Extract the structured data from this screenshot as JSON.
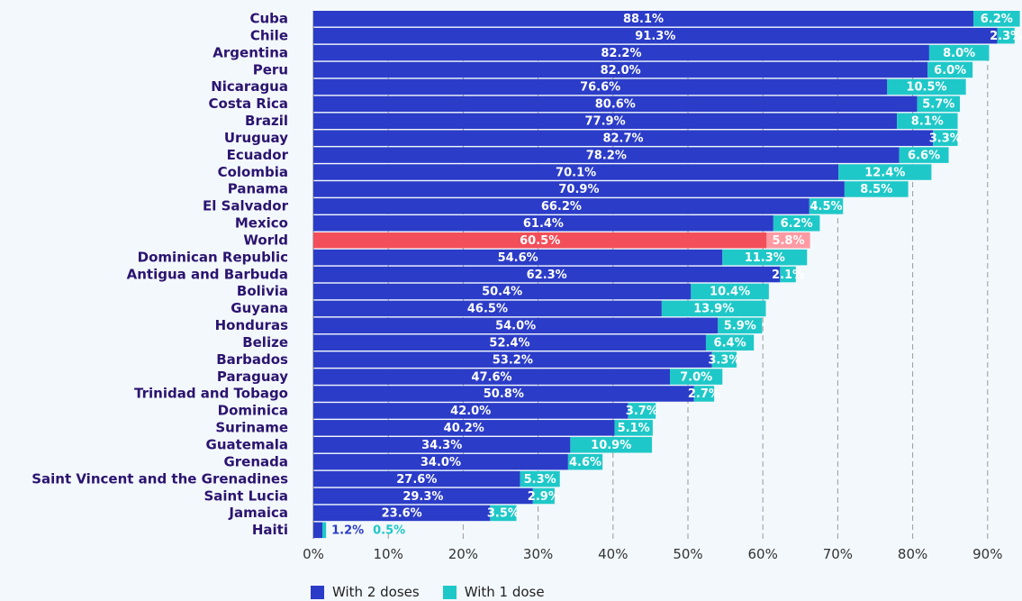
{
  "chart_data": {
    "type": "bar",
    "orientation": "horizontal",
    "stacked": true,
    "categories": [
      "Cuba",
      "Chile",
      "Argentina",
      "Peru",
      "Nicaragua",
      "Costa Rica",
      "Brazil",
      "Uruguay",
      "Ecuador",
      "Colombia",
      "Panama",
      "El Salvador",
      "Mexico",
      "World",
      "Dominican Republic",
      "Antigua and Barbuda",
      "Bolivia",
      "Guyana",
      "Honduras",
      "Belize",
      "Barbados",
      "Paraguay",
      "Trinidad and Tobago",
      "Dominica",
      "Suriname",
      "Guatemala",
      "Grenada",
      "Saint Vincent and the Grenadines",
      "Saint Lucia",
      "Jamaica",
      "Haiti"
    ],
    "series": [
      {
        "name": "With 2 doses",
        "color": "#2b3cc8",
        "values": [
          88.1,
          91.3,
          82.2,
          82.0,
          76.6,
          80.6,
          77.9,
          82.7,
          78.2,
          70.1,
          70.9,
          66.2,
          61.4,
          60.5,
          54.6,
          62.3,
          50.4,
          46.5,
          54.0,
          52.4,
          53.2,
          47.6,
          50.8,
          42.0,
          40.2,
          34.3,
          34.0,
          27.6,
          29.3,
          23.6,
          1.2
        ]
      },
      {
        "name": "With 1 dose",
        "color": "#1fc8c8",
        "values": [
          6.2,
          2.3,
          8.0,
          6.0,
          10.5,
          5.7,
          8.1,
          3.3,
          6.6,
          12.4,
          8.5,
          4.5,
          6.2,
          5.8,
          11.3,
          2.1,
          10.4,
          13.9,
          5.9,
          6.4,
          3.3,
          7.0,
          2.7,
          3.7,
          5.1,
          10.9,
          4.6,
          5.3,
          2.9,
          3.5,
          0.5
        ]
      }
    ],
    "highlight": {
      "category": "World",
      "color_two_doses": "#f24f5a",
      "color_one_dose": "#ff9aa2"
    },
    "xticks": [
      "0%",
      "10%",
      "20%",
      "30%",
      "40%",
      "50%",
      "60%",
      "70%",
      "80%",
      "90%"
    ],
    "xlim": [
      0,
      94.6
    ],
    "grid": "vertical dashed",
    "legend_position": "bottom"
  }
}
